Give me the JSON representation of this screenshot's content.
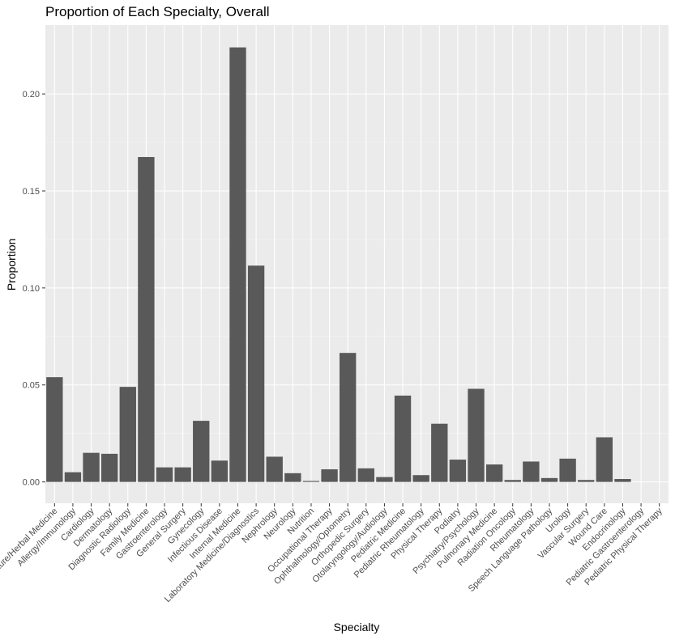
{
  "chart_data": {
    "type": "bar",
    "title": "Proportion of Each Specialty, Overall",
    "xlabel": "Specialty",
    "ylabel": "Proportion",
    "ylim": [
      -0.011,
      0.2355
    ],
    "yticks": [
      0.0,
      0.05,
      0.1,
      0.15,
      0.2
    ],
    "ytick_labels": [
      "0.00",
      "0.05",
      "0.10",
      "0.15",
      "0.20"
    ],
    "grid": true,
    "background": "#ebebeb",
    "bar_color": "#595959",
    "categories": [
      "Acupuncture/Herbal Medicine",
      "Allergy/Immunology",
      "Cardiology",
      "Dermatology",
      "Diagnostic Radiology",
      "Family Medicine",
      "Gastroenterology",
      "General Surgery",
      "Gynecology",
      "Infectious Disease",
      "Internal Medicine",
      "Laboratory Medicine/Diagnostics",
      "Nephrology",
      "Neurology",
      "Nutrition",
      "Occupational Therapy",
      "Ophthalmology/Optometry",
      "Orthopedic Surgery",
      "Otolaryngology/Audiology",
      "Pediatric Medicine",
      "Pediatric Rheumatology",
      "Physical Therapy",
      "Podiatry",
      "Psychiatry/Psychology",
      "Pulmonary Medicine",
      "Radiation Oncology",
      "Rheumatology",
      "Speech Language Pathology",
      "Urology",
      "Vascular Surgery",
      "Wound Care",
      "Endocrinology",
      "Pediatric Gastroenterology",
      "Pediatric Physical Therapy"
    ],
    "values": [
      0.054,
      0.005,
      0.015,
      0.0145,
      0.049,
      0.1675,
      0.0075,
      0.0075,
      0.0315,
      0.011,
      0.224,
      0.1115,
      0.013,
      0.0045,
      0.0005,
      0.0065,
      0.0665,
      0.007,
      0.0025,
      0.0445,
      0.0035,
      0.03,
      0.0115,
      0.048,
      0.009,
      0.001,
      0.0105,
      0.002,
      0.012,
      0.001,
      0.023,
      0.0015,
      0.0,
      0.0
    ]
  }
}
